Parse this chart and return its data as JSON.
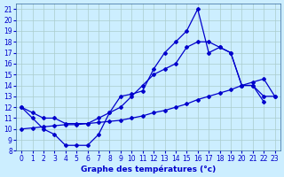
{
  "title": "Graphe des températures (°c)",
  "bg_color": "#cceeff",
  "grid_color": "#aacccc",
  "line_color": "#0000cc",
  "xlim": [
    -0.5,
    23.5
  ],
  "ylim": [
    8,
    21.5
  ],
  "xticks": [
    0,
    1,
    2,
    3,
    4,
    5,
    6,
    7,
    8,
    9,
    10,
    11,
    12,
    13,
    14,
    15,
    16,
    17,
    18,
    19,
    20,
    21,
    22,
    23
  ],
  "yticks": [
    8,
    9,
    10,
    11,
    12,
    13,
    14,
    15,
    16,
    17,
    18,
    19,
    20,
    21
  ],
  "line1_x": [
    0,
    1,
    2,
    3,
    4,
    5,
    6,
    7,
    8,
    9,
    10,
    11,
    12,
    13,
    14,
    15,
    16,
    17,
    18,
    19,
    20,
    21,
    22
  ],
  "line1_y": [
    12,
    11,
    10,
    9.5,
    8.5,
    8.5,
    8.5,
    9.5,
    11.5,
    13,
    13.2,
    13.5,
    15.5,
    17,
    18,
    19,
    21,
    17,
    17.5,
    17,
    14,
    14,
    12.5
  ],
  "line2_x": [
    0,
    1,
    2,
    3,
    4,
    5,
    6,
    7,
    8,
    9,
    10,
    11,
    12,
    13,
    14,
    15,
    16,
    17,
    18,
    19,
    20,
    21,
    22,
    23
  ],
  "line2_y": [
    12,
    11.5,
    11.0,
    11.0,
    10.5,
    10.5,
    10.5,
    11.0,
    11.5,
    12.0,
    13.0,
    14.0,
    15.0,
    15.5,
    16.0,
    17.5,
    18.0,
    18.0,
    17.5,
    17.0,
    14.0,
    14.0,
    13.0,
    13.0
  ],
  "line3_x": [
    0,
    1,
    2,
    3,
    4,
    5,
    6,
    7,
    8,
    9,
    10,
    11,
    12,
    13,
    14,
    15,
    16,
    17,
    18,
    19,
    20,
    21,
    22,
    23
  ],
  "line3_y": [
    10,
    10.1,
    10.2,
    10.3,
    10.4,
    10.4,
    10.5,
    10.6,
    10.7,
    10.8,
    11.0,
    11.2,
    11.5,
    11.7,
    12.0,
    12.3,
    12.7,
    13.0,
    13.3,
    13.6,
    14.0,
    14.3,
    14.6,
    13.0
  ],
  "tick_fontsize": 5.5,
  "xlabel_fontsize": 6.5
}
